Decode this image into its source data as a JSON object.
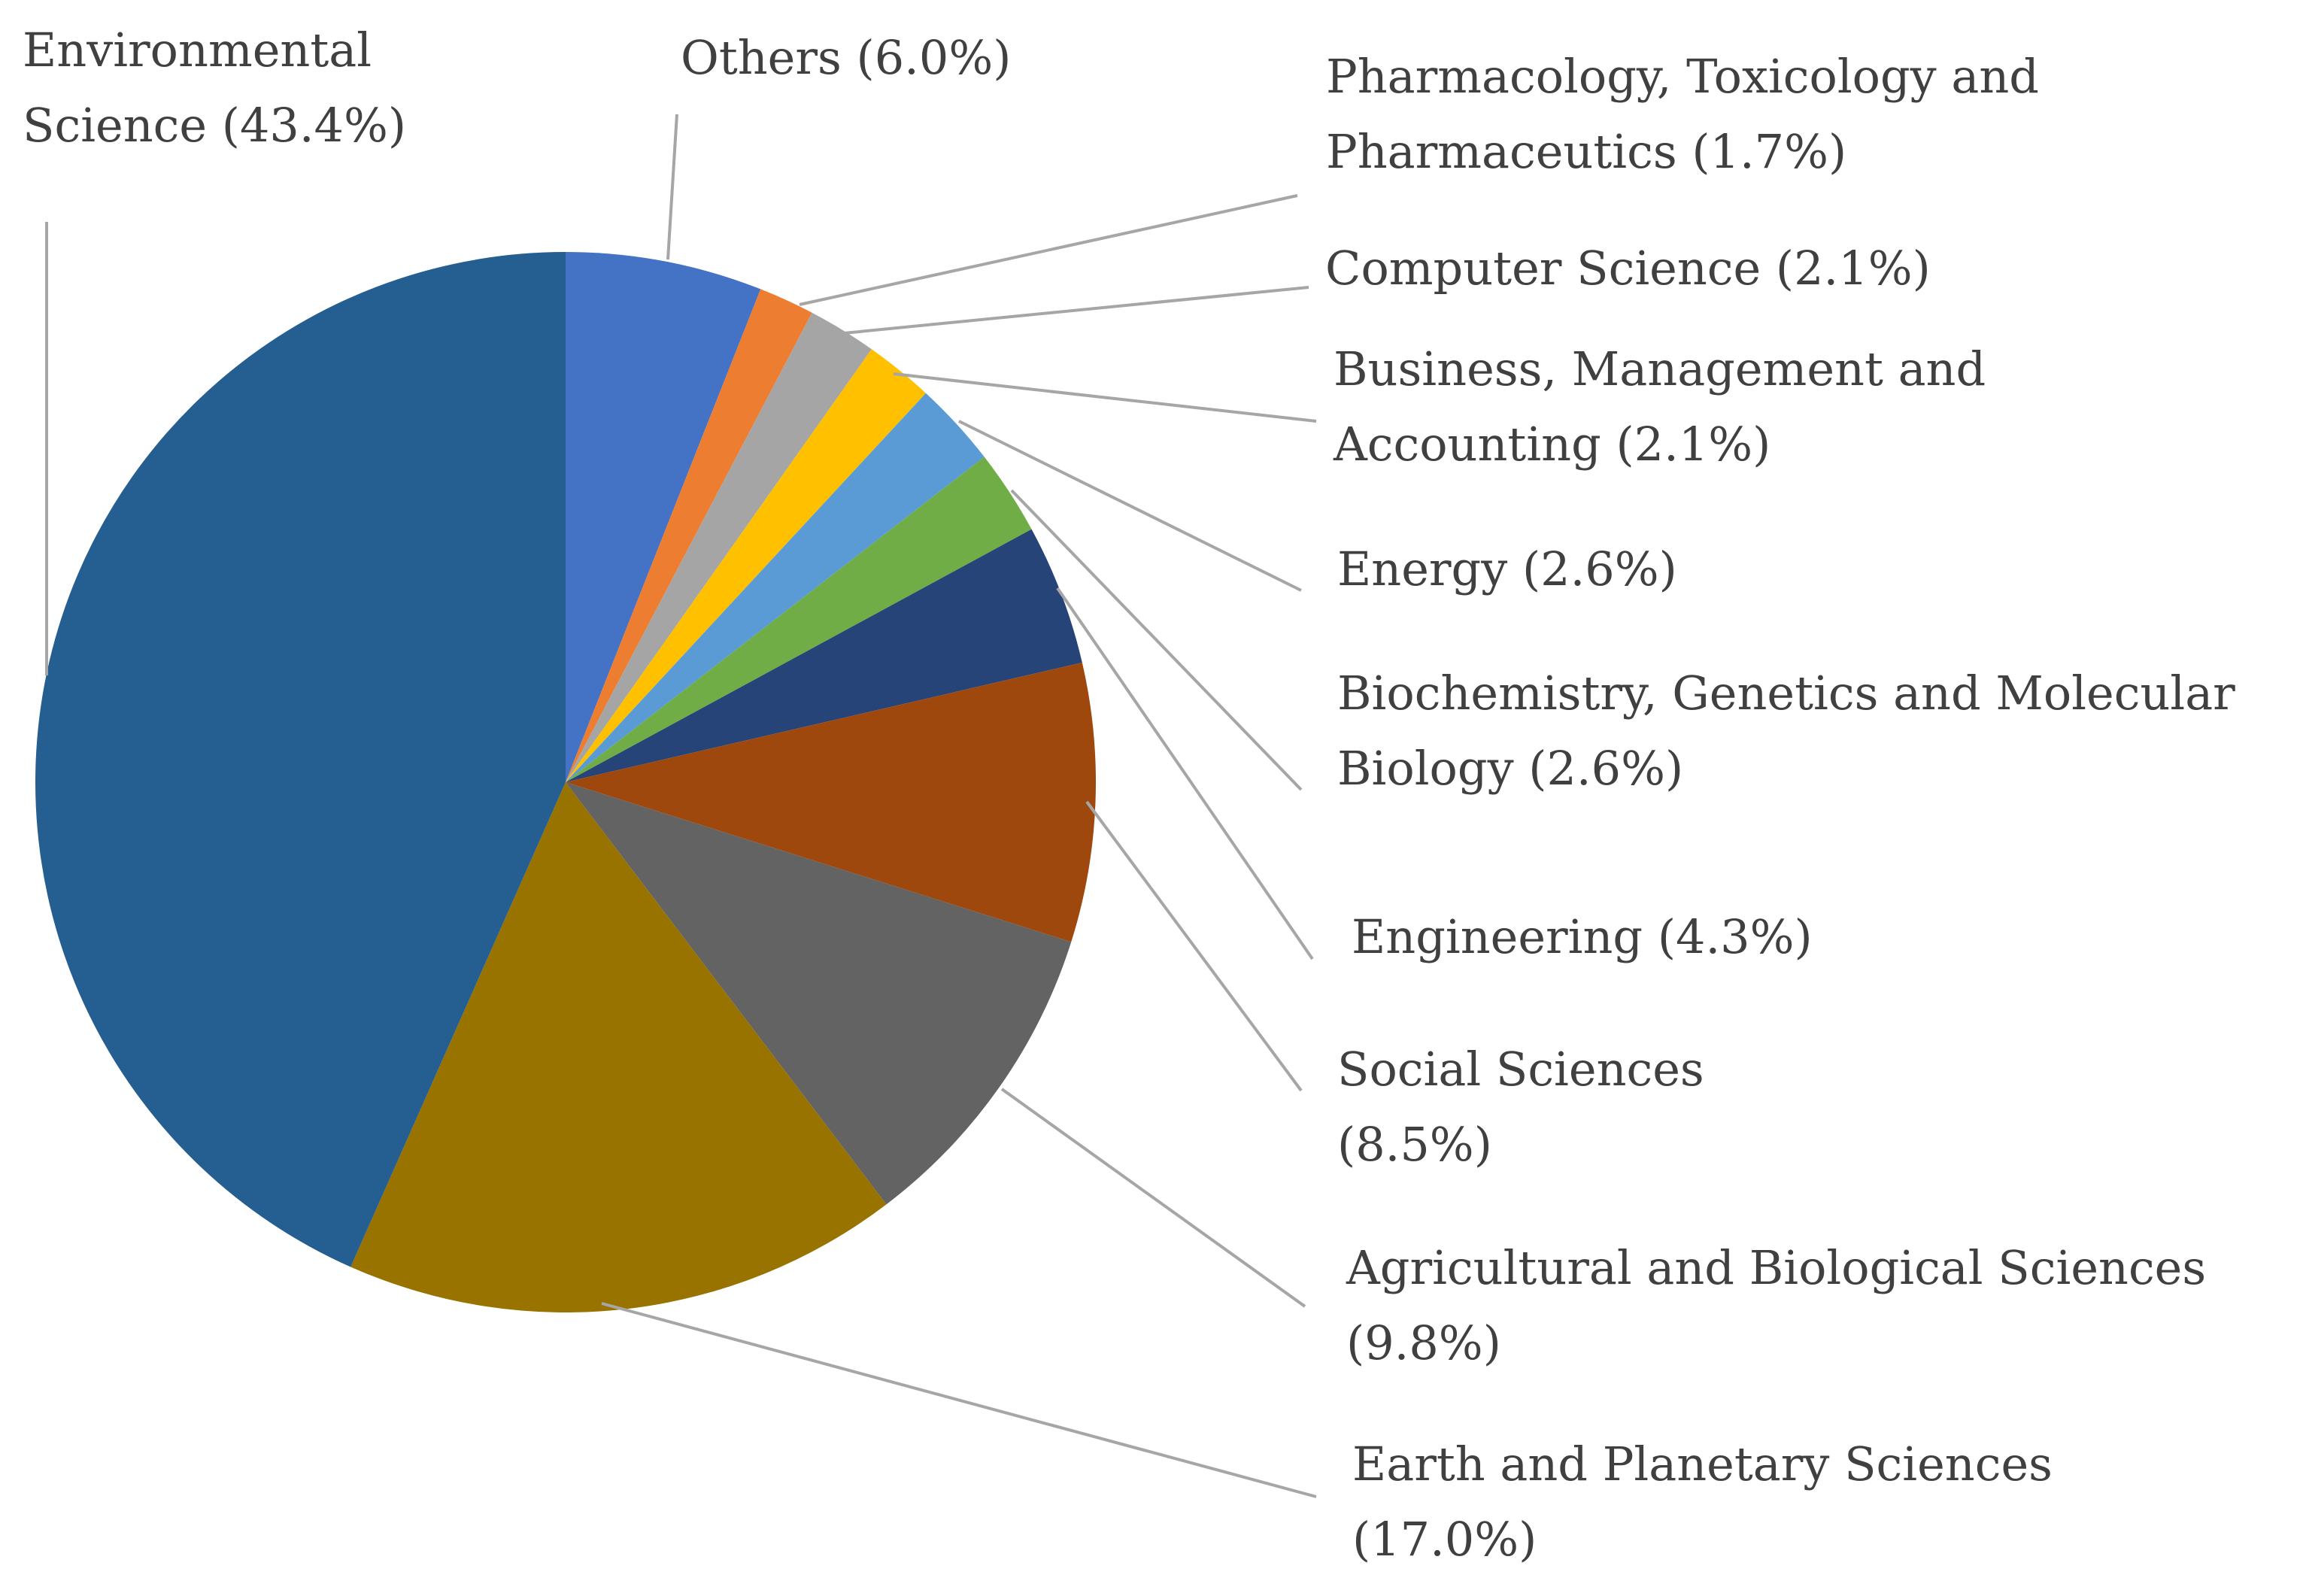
{
  "chart_data": {
    "type": "pie",
    "title": "",
    "start_angle_deg": 0,
    "direction": "clockwise",
    "slices": [
      {
        "name": "Others",
        "value": 6.0,
        "label_lines": [
          "Others (6.0%)"
        ],
        "color": "#4472c4"
      },
      {
        "name": "Pharmacology, Toxicology and Pharmaceutics",
        "value": 1.7,
        "label_lines": [
          "Pharmacology, Toxicology and",
          "Pharmaceutics (1.7%)"
        ],
        "color": "#ed7d31"
      },
      {
        "name": "Computer Science",
        "value": 2.1,
        "label_lines": [
          "Computer Science (2.1%)"
        ],
        "color": "#a5a5a5"
      },
      {
        "name": "Business, Management and Accounting",
        "value": 2.1,
        "label_lines": [
          "Business, Management and",
          "Accounting (2.1%)"
        ],
        "color": "#ffc000"
      },
      {
        "name": "Energy",
        "value": 2.6,
        "label_lines": [
          "Energy (2.6%)"
        ],
        "color": "#5b9bd5"
      },
      {
        "name": "Biochemistry, Genetics and Molecular Biology",
        "value": 2.6,
        "label_lines": [
          "Biochemistry, Genetics and Molecular",
          "Biology  (2.6%)"
        ],
        "color": "#70ad47"
      },
      {
        "name": "Engineering",
        "value": 4.3,
        "label_lines": [
          "Engineering (4.3%)"
        ],
        "color": "#264478"
      },
      {
        "name": "Social Sciences",
        "value": 8.5,
        "label_lines": [
          "Social Sciences",
          "(8.5%)"
        ],
        "color": "#9e480e"
      },
      {
        "name": "Agricultural and Biological Sciences",
        "value": 9.8,
        "label_lines": [
          "Agricultural and Biological Sciences",
          "(9.8%)"
        ],
        "color": "#636363"
      },
      {
        "name": "Earth and Planetary Sciences",
        "value": 17.0,
        "label_lines": [
          "Earth and Planetary Sciences",
          "(17.0%)"
        ],
        "color": "#997300"
      },
      {
        "name": "Environmental Science",
        "value": 43.4,
        "label_lines": [
          "Environmental",
          "Science (43.4%)"
        ],
        "color": "#255e91"
      }
    ]
  }
}
